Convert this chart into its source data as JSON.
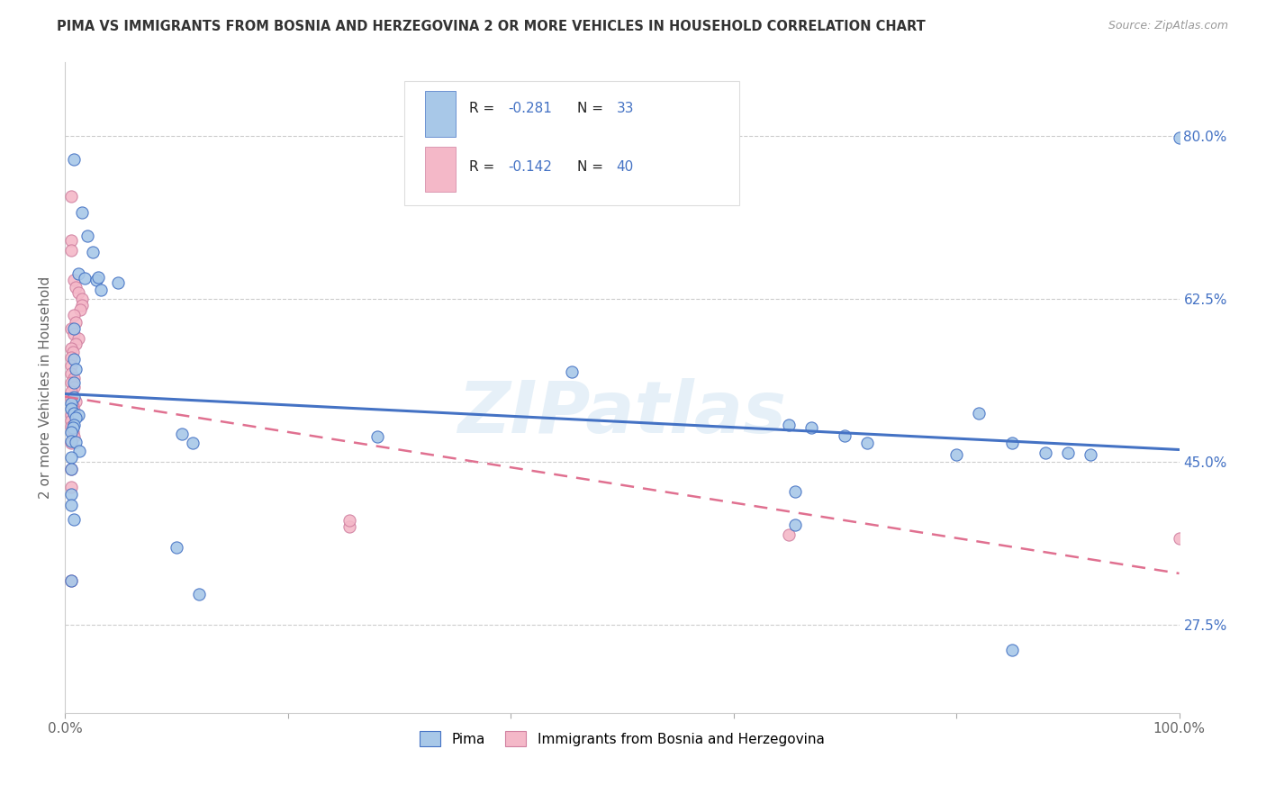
{
  "title": "PIMA VS IMMIGRANTS FROM BOSNIA AND HERZEGOVINA 2 OR MORE VEHICLES IN HOUSEHOLD CORRELATION CHART",
  "source": "Source: ZipAtlas.com",
  "ylabel": "2 or more Vehicles in Household",
  "xlim": [
    0.0,
    1.0
  ],
  "ylim": [
    0.18,
    0.88
  ],
  "y_ticks_right": [
    0.8,
    0.625,
    0.45,
    0.275
  ],
  "y_tick_labels_right": [
    "80.0%",
    "62.5%",
    "45.0%",
    "27.5%"
  ],
  "blue_color": "#a8c8e8",
  "pink_color": "#f4b8c8",
  "line_blue": "#4472c4",
  "line_pink": "#e07090",
  "blue_scatter": [
    [
      0.008,
      0.775
    ],
    [
      0.015,
      0.718
    ],
    [
      0.02,
      0.693
    ],
    [
      0.025,
      0.675
    ],
    [
      0.012,
      0.652
    ],
    [
      0.018,
      0.647
    ],
    [
      0.028,
      0.645
    ],
    [
      0.048,
      0.642
    ],
    [
      0.008,
      0.593
    ],
    [
      0.03,
      0.648
    ],
    [
      0.032,
      0.635
    ],
    [
      0.008,
      0.56
    ],
    [
      0.01,
      0.55
    ],
    [
      0.008,
      0.535
    ],
    [
      0.008,
      0.52
    ],
    [
      0.006,
      0.513
    ],
    [
      0.006,
      0.507
    ],
    [
      0.008,
      0.502
    ],
    [
      0.012,
      0.5
    ],
    [
      0.01,
      0.497
    ],
    [
      0.008,
      0.49
    ],
    [
      0.007,
      0.487
    ],
    [
      0.006,
      0.482
    ],
    [
      0.006,
      0.472
    ],
    [
      0.01,
      0.471
    ],
    [
      0.013,
      0.462
    ],
    [
      0.006,
      0.455
    ],
    [
      0.006,
      0.442
    ],
    [
      0.105,
      0.48
    ],
    [
      0.115,
      0.47
    ],
    [
      0.28,
      0.477
    ],
    [
      0.455,
      0.547
    ],
    [
      0.006,
      0.415
    ],
    [
      0.006,
      0.403
    ],
    [
      0.008,
      0.388
    ],
    [
      0.1,
      0.358
    ],
    [
      0.65,
      0.49
    ],
    [
      0.67,
      0.487
    ],
    [
      0.7,
      0.478
    ],
    [
      0.72,
      0.47
    ],
    [
      0.8,
      0.458
    ],
    [
      0.82,
      0.502
    ],
    [
      0.85,
      0.47
    ],
    [
      0.88,
      0.46
    ],
    [
      0.9,
      0.46
    ],
    [
      0.655,
      0.418
    ],
    [
      0.655,
      0.382
    ],
    [
      0.006,
      0.322
    ],
    [
      0.12,
      0.308
    ],
    [
      0.85,
      0.248
    ],
    [
      0.92,
      0.458
    ],
    [
      1.0,
      0.798
    ]
  ],
  "pink_scatter": [
    [
      0.006,
      0.735
    ],
    [
      0.006,
      0.688
    ],
    [
      0.006,
      0.677
    ],
    [
      0.008,
      0.645
    ],
    [
      0.01,
      0.638
    ],
    [
      0.012,
      0.632
    ],
    [
      0.015,
      0.625
    ],
    [
      0.015,
      0.618
    ],
    [
      0.014,
      0.613
    ],
    [
      0.008,
      0.608
    ],
    [
      0.01,
      0.6
    ],
    [
      0.006,
      0.593
    ],
    [
      0.008,
      0.587
    ],
    [
      0.012,
      0.582
    ],
    [
      0.01,
      0.577
    ],
    [
      0.006,
      0.572
    ],
    [
      0.007,
      0.568
    ],
    [
      0.006,
      0.562
    ],
    [
      0.006,
      0.553
    ],
    [
      0.006,
      0.545
    ],
    [
      0.008,
      0.54
    ],
    [
      0.006,
      0.535
    ],
    [
      0.008,
      0.53
    ],
    [
      0.006,
      0.525
    ],
    [
      0.006,
      0.518
    ],
    [
      0.01,
      0.515
    ],
    [
      0.007,
      0.51
    ],
    [
      0.008,
      0.505
    ],
    [
      0.006,
      0.5
    ],
    [
      0.006,
      0.494
    ],
    [
      0.006,
      0.488
    ],
    [
      0.007,
      0.482
    ],
    [
      0.008,
      0.477
    ],
    [
      0.006,
      0.47
    ],
    [
      0.006,
      0.442
    ],
    [
      0.006,
      0.423
    ],
    [
      0.255,
      0.38
    ],
    [
      0.255,
      0.387
    ],
    [
      0.65,
      0.372
    ],
    [
      0.006,
      0.322
    ],
    [
      1.0,
      0.368
    ]
  ],
  "blue_line_x": [
    0.0,
    1.0
  ],
  "blue_line_y": [
    0.523,
    0.463
  ],
  "pink_line_x": [
    0.0,
    1.0
  ],
  "pink_line_y": [
    0.52,
    0.33
  ]
}
